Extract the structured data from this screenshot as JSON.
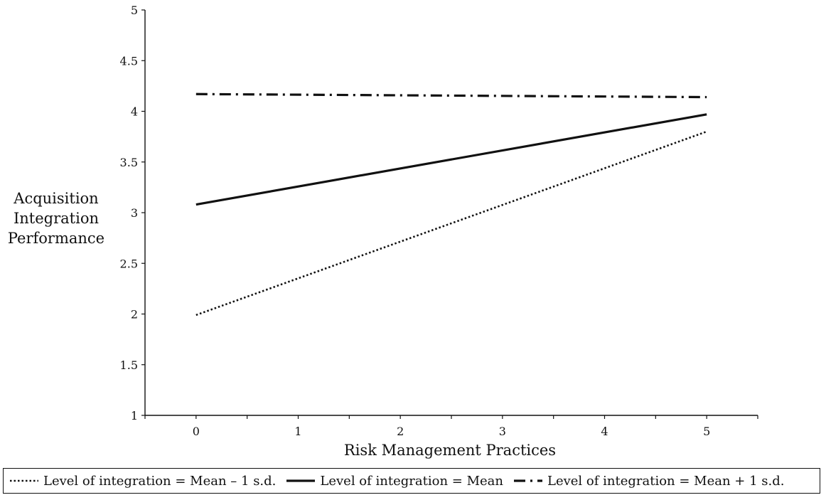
{
  "chart_data": {
    "type": "line",
    "title": "",
    "xlabel": "Risk Management Practices",
    "ylabel": [
      "Acquisition",
      "Integration",
      "Performance"
    ],
    "xlim": [
      -0.5,
      5.5
    ],
    "ylim": [
      1,
      5
    ],
    "x_ticks": [
      0,
      1,
      2,
      3,
      4,
      5
    ],
    "y_ticks": [
      1,
      1.5,
      2,
      2.5,
      3,
      3.5,
      4,
      4.5,
      5
    ],
    "grid": false,
    "legend_position": "bottom",
    "x": [
      0,
      5
    ],
    "series": [
      {
        "name": "Level of integration = Mean –  1 s.d.",
        "style": "dotted",
        "color": "#111111",
        "values": [
          1.99,
          3.8
        ]
      },
      {
        "name": "Level of integration = Mean",
        "style": "solid",
        "color": "#111111",
        "values": [
          3.08,
          3.97
        ]
      },
      {
        "name": "Level of integration = Mean + 1 s.d.",
        "style": "dash-dot",
        "color": "#111111",
        "values": [
          4.17,
          4.14
        ]
      }
    ]
  }
}
